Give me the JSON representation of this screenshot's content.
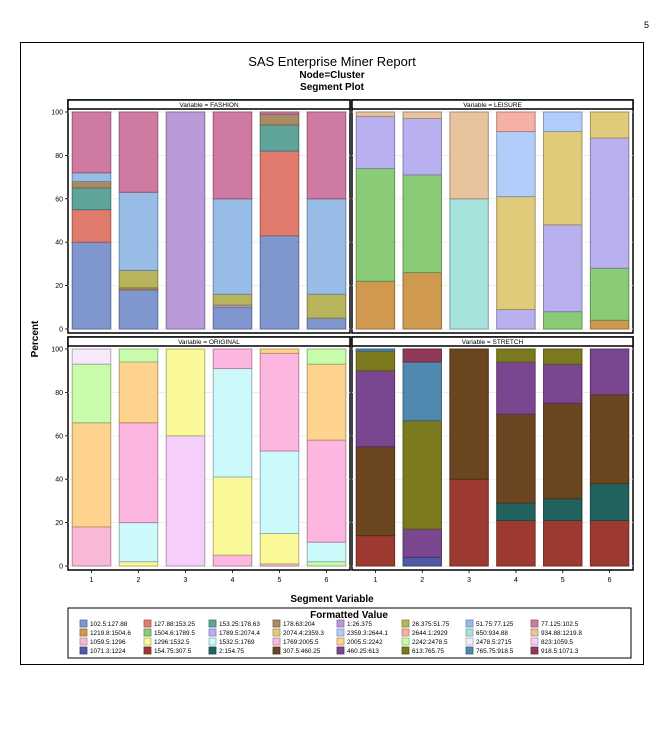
{
  "page": {
    "number": "5"
  },
  "report": {
    "title": "SAS Enterprise Miner Report",
    "subtitle1": "Node=Cluster",
    "subtitle2": "Segment Plot"
  },
  "chart_data": {
    "type": "bar",
    "stacked": true,
    "ylabel": "Percent",
    "xlabel": "Segment Variable",
    "ylim": [
      0,
      100
    ],
    "yticks": [
      0,
      20,
      40,
      60,
      80,
      100
    ],
    "categories": [
      "1",
      "2",
      "3",
      "4",
      "5",
      "6"
    ],
    "legend_title": "Formatted Value",
    "legend_position": "bottom",
    "legend": [
      {
        "label": "102.5:127.88",
        "color": "#7f96cf"
      },
      {
        "label": "127.88:153.25",
        "color": "#e07b6d"
      },
      {
        "label": "153.25:178.63",
        "color": "#5fa39a"
      },
      {
        "label": "178.63:204",
        "color": "#a88a64"
      },
      {
        "label": "1:26.375",
        "color": "#b89ad6"
      },
      {
        "label": "26.375:51.75",
        "color": "#b7b45c"
      },
      {
        "label": "51.75:77.125",
        "color": "#97bde6"
      },
      {
        "label": "77.125:102.5",
        "color": "#cf7aa3"
      },
      {
        "label": "1219.8:1504.6",
        "color": "#cf9a50"
      },
      {
        "label": "1504.6:1789.5",
        "color": "#8acb76"
      },
      {
        "label": "1789.5:2074.4",
        "color": "#b9b1ef"
      },
      {
        "label": "2074.4:2359.3",
        "color": "#dfcb7a"
      },
      {
        "label": "2359.3:2644.1",
        "color": "#b3cdfa"
      },
      {
        "label": "2644.1:2929",
        "color": "#f7b0a6"
      },
      {
        "label": "650:934.88",
        "color": "#a6e3dc"
      },
      {
        "label": "934.88:1219.8",
        "color": "#e8c49e"
      },
      {
        "label": "1059.5:1296",
        "color": "#f9b9d6"
      },
      {
        "label": "1296:1532.5",
        "color": "#f9f99a"
      },
      {
        "label": "1532.5:1769",
        "color": "#ccf9f9"
      },
      {
        "label": "1769:2005.5",
        "color": "#fdb6df"
      },
      {
        "label": "2005.5:2242",
        "color": "#fdd38e"
      },
      {
        "label": "2242:2478.5",
        "color": "#c9fcaa"
      },
      {
        "label": "2478.5:2715",
        "color": "#f6e9fb"
      },
      {
        "label": "823:1059.5",
        "color": "#f5cffa"
      },
      {
        "label": "1071.3:1224",
        "color": "#4f5aa6"
      },
      {
        "label": "154.75:307.5",
        "color": "#9c3a32"
      },
      {
        "label": "2:154.75",
        "color": "#21625f"
      },
      {
        "label": "307.5:460.25",
        "color": "#6b4420"
      },
      {
        "label": "460.25:613",
        "color": "#7a4690"
      },
      {
        "label": "613:765.75",
        "color": "#7b7a1e"
      },
      {
        "label": "765.75:918.5",
        "color": "#5088b0"
      },
      {
        "label": "918.5:1071.3",
        "color": "#8f3a5a"
      }
    ],
    "panels": [
      {
        "header": "Variable = FASHION",
        "bars": [
          [
            {
              "v": 40,
              "c": 0
            },
            {
              "v": 15,
              "c": 1
            },
            {
              "v": 10,
              "c": 2
            },
            {
              "v": 3,
              "c": 3
            },
            {
              "v": 4,
              "c": 6
            },
            {
              "v": 28,
              "c": 7
            }
          ],
          [
            {
              "v": 18,
              "c": 0
            },
            {
              "v": 1,
              "c": 3
            },
            {
              "v": 8,
              "c": 5
            },
            {
              "v": 36,
              "c": 6
            },
            {
              "v": 37,
              "c": 7
            }
          ],
          [
            {
              "v": 100,
              "c": 4
            }
          ],
          [
            {
              "v": 10,
              "c": 0
            },
            {
              "v": 1,
              "c": 4
            },
            {
              "v": 5,
              "c": 5
            },
            {
              "v": 44,
              "c": 6
            },
            {
              "v": 40,
              "c": 7
            }
          ],
          [
            {
              "v": 43,
              "c": 0
            },
            {
              "v": 39,
              "c": 1
            },
            {
              "v": 12,
              "c": 2
            },
            {
              "v": 5,
              "c": 3
            },
            {
              "v": 1,
              "c": 7
            }
          ],
          [
            {
              "v": 5,
              "c": 0
            },
            {
              "v": 11,
              "c": 5
            },
            {
              "v": 44,
              "c": 6
            },
            {
              "v": 40,
              "c": 7
            }
          ]
        ]
      },
      {
        "header": "Variable = LEISURE",
        "bars": [
          [
            {
              "v": 22,
              "c": 8
            },
            {
              "v": 52,
              "c": 9
            },
            {
              "v": 24,
              "c": 10
            },
            {
              "v": 2,
              "c": 15
            }
          ],
          [
            {
              "v": 26,
              "c": 8
            },
            {
              "v": 45,
              "c": 9
            },
            {
              "v": 26,
              "c": 10
            },
            {
              "v": 3,
              "c": 15
            }
          ],
          [
            {
              "v": 60,
              "c": 14
            },
            {
              "v": 40,
              "c": 15
            }
          ],
          [
            {
              "v": 9,
              "c": 10
            },
            {
              "v": 52,
              "c": 11
            },
            {
              "v": 30,
              "c": 12
            },
            {
              "v": 9,
              "c": 13
            }
          ],
          [
            {
              "v": 8,
              "c": 9
            },
            {
              "v": 40,
              "c": 10
            },
            {
              "v": 43,
              "c": 11
            },
            {
              "v": 9,
              "c": 12
            }
          ],
          [
            {
              "v": 4,
              "c": 8
            },
            {
              "v": 24,
              "c": 9
            },
            {
              "v": 60,
              "c": 10
            },
            {
              "v": 12,
              "c": 11
            }
          ]
        ]
      },
      {
        "header": "Variable = ORIGINAL",
        "bars": [
          [
            {
              "v": 18,
              "c": 16
            },
            {
              "v": 48,
              "c": 20
            },
            {
              "v": 27,
              "c": 21
            },
            {
              "v": 7,
              "c": 22
            }
          ],
          [
            {
              "v": 2,
              "c": 17
            },
            {
              "v": 18,
              "c": 18
            },
            {
              "v": 46,
              "c": 19
            },
            {
              "v": 28,
              "c": 20
            },
            {
              "v": 6,
              "c": 21
            }
          ],
          [
            {
              "v": 60,
              "c": 23
            },
            {
              "v": 40,
              "c": 17
            }
          ],
          [
            {
              "v": 5,
              "c": 19
            },
            {
              "v": 36,
              "c": 17
            },
            {
              "v": 50,
              "c": 18
            },
            {
              "v": 9,
              "c": 19
            }
          ],
          [
            {
              "v": 1,
              "c": 16
            },
            {
              "v": 14,
              "c": 17
            },
            {
              "v": 38,
              "c": 18
            },
            {
              "v": 45,
              "c": 19
            },
            {
              "v": 2,
              "c": 20
            }
          ],
          [
            {
              "v": 2,
              "c": 21
            },
            {
              "v": 9,
              "c": 18
            },
            {
              "v": 47,
              "c": 19
            },
            {
              "v": 35,
              "c": 20
            },
            {
              "v": 7,
              "c": 21
            }
          ]
        ]
      },
      {
        "header": "Variable = STRETCH",
        "bars": [
          [
            {
              "v": 14,
              "c": 25
            },
            {
              "v": 41,
              "c": 27
            },
            {
              "v": 35,
              "c": 28
            },
            {
              "v": 9,
              "c": 29
            },
            {
              "v": 1,
              "c": 30
            }
          ],
          [
            {
              "v": 4,
              "c": 24
            },
            {
              "v": 13,
              "c": 28
            },
            {
              "v": 50,
              "c": 29
            },
            {
              "v": 27,
              "c": 30
            },
            {
              "v": 6,
              "c": 31
            }
          ],
          [
            {
              "v": 40,
              "c": 25
            },
            {
              "v": 60,
              "c": 27
            }
          ],
          [
            {
              "v": 21,
              "c": 25
            },
            {
              "v": 8,
              "c": 26
            },
            {
              "v": 41,
              "c": 27
            },
            {
              "v": 24,
              "c": 28
            },
            {
              "v": 6,
              "c": 29
            }
          ],
          [
            {
              "v": 21,
              "c": 25
            },
            {
              "v": 10,
              "c": 26
            },
            {
              "v": 44,
              "c": 27
            },
            {
              "v": 18,
              "c": 28
            },
            {
              "v": 7,
              "c": 29
            }
          ],
          [
            {
              "v": 21,
              "c": 25
            },
            {
              "v": 17,
              "c": 26
            },
            {
              "v": 41,
              "c": 27
            },
            {
              "v": 21,
              "c": 28
            }
          ]
        ]
      }
    ]
  }
}
